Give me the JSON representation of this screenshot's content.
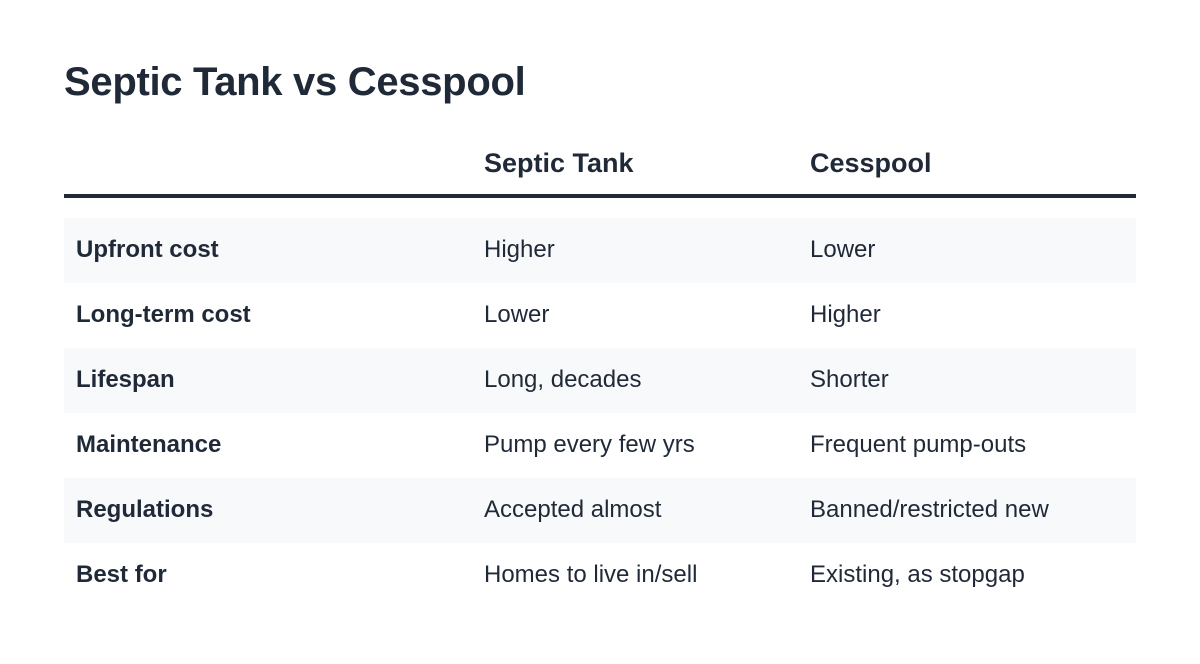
{
  "title": "Septic Tank vs Cesspool",
  "columns": [
    "",
    "Septic Tank",
    "Cesspool"
  ],
  "rows": [
    {
      "label": "Upfront cost",
      "septic": "Higher",
      "cesspool": "Lower"
    },
    {
      "label": "Long-term cost",
      "septic": "Lower",
      "cesspool": "Higher"
    },
    {
      "label": "Lifespan",
      "septic": "Long, decades",
      "cesspool": "Shorter"
    },
    {
      "label": "Maintenance",
      "septic": "Pump every few yrs",
      "cesspool": "Frequent pump-outs"
    },
    {
      "label": "Regulations",
      "septic": "Accepted almost",
      "cesspool": "Banned/restricted new"
    },
    {
      "label": "Best for",
      "septic": "Homes to live in/sell",
      "cesspool": "Existing, as stopgap"
    }
  ]
}
